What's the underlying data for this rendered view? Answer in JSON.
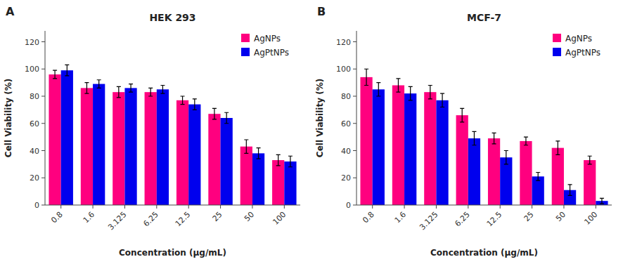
{
  "chart_data": [
    {
      "type": "bar",
      "title": "HEK 293",
      "annotations": [
        "A"
      ],
      "xlabel": "Concentration (μg/mL)",
      "ylabel": "Cell Viability (%)",
      "categories": [
        "0.8",
        "1.6",
        "3.125",
        "6.25",
        "12.5",
        "25",
        "50",
        "100"
      ],
      "series": [
        {
          "name": "AgNPs",
          "color": "#FF007F",
          "values": [
            96,
            86,
            83,
            83,
            77,
            67,
            43,
            33
          ],
          "errors": [
            3,
            4,
            4,
            3,
            3,
            4,
            5,
            4
          ]
        },
        {
          "name": "AgPtNPs",
          "color": "#0000EE",
          "values": [
            99,
            89,
            86,
            85,
            74,
            64,
            38,
            32
          ],
          "errors": [
            4,
            3,
            3,
            3,
            4,
            4,
            4,
            4
          ]
        }
      ],
      "ylim": [
        0,
        128
      ],
      "yticks": [
        0,
        20,
        40,
        60,
        80,
        100,
        120
      ],
      "grid": false,
      "legend": "upper right"
    },
    {
      "type": "bar",
      "title": "MCF-7",
      "annotations": [
        "B"
      ],
      "xlabel": "Concentration (μg/mL)",
      "ylabel": "Cell Viability (%)",
      "categories": [
        "0.8",
        "1.6",
        "3.125",
        "6.25",
        "12.5",
        "25",
        "50",
        "100"
      ],
      "series": [
        {
          "name": "AgNPs",
          "color": "#FF007F",
          "values": [
            94,
            88,
            83,
            66,
            49,
            47,
            42,
            33
          ],
          "errors": [
            6,
            5,
            5,
            5,
            4,
            3,
            5,
            3
          ]
        },
        {
          "name": "AgPtNPs",
          "color": "#0000EE",
          "values": [
            85,
            82,
            77,
            49,
            35,
            21,
            11,
            3
          ],
          "errors": [
            5,
            5,
            5,
            5,
            5,
            3,
            4,
            2
          ]
        }
      ],
      "ylim": [
        0,
        128
      ],
      "yticks": [
        0,
        20,
        40,
        60,
        80,
        100,
        120
      ],
      "grid": false,
      "legend": "upper right"
    }
  ]
}
